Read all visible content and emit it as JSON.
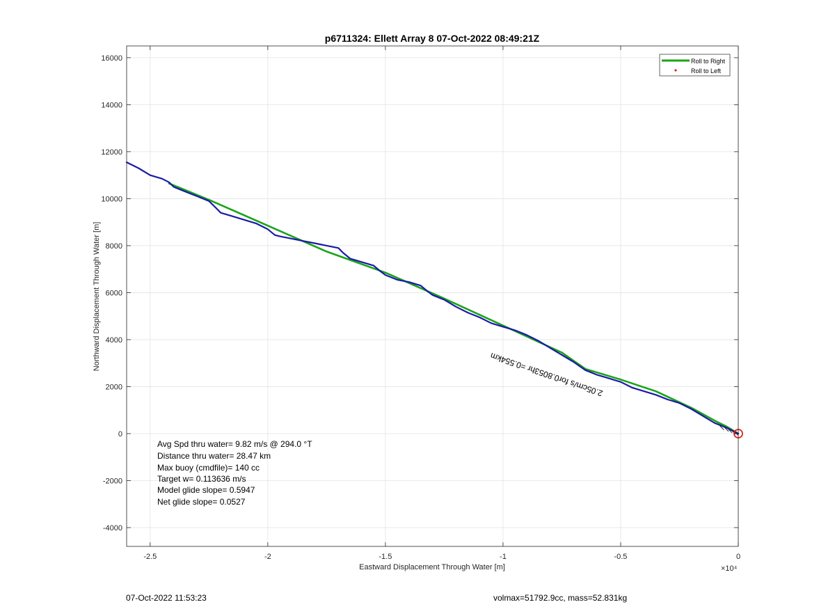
{
  "chart_data": {
    "type": "line",
    "title": "p6711324: Ellett Array 8 07-Oct-2022 08:49:21Z",
    "xlabel": "Eastward Displacement Through Water [m]",
    "ylabel": "Northward Displacement Through Water [m]",
    "xlim": [
      -26000,
      0
    ],
    "ylim": [
      -4800,
      16500
    ],
    "x_ticks": [
      -25000,
      -20000,
      -15000,
      -10000,
      -5000,
      0
    ],
    "x_tick_labels": [
      "-2.5",
      "-2",
      "-1.5",
      "-1",
      "-0.5",
      "0"
    ],
    "x_multiplier": "×10⁴",
    "y_ticks": [
      -4000,
      -2000,
      0,
      2000,
      4000,
      6000,
      8000,
      10000,
      12000,
      14000,
      16000
    ],
    "y_tick_labels": [
      "-4000",
      "-2000",
      "0",
      "2000",
      "4000",
      "6000",
      "8000",
      "10000",
      "12000",
      "14000",
      "16000"
    ],
    "grid": true,
    "legend_position": "top-right",
    "legend": [
      {
        "label": "Roll to Right",
        "color": "#1aa31a",
        "marker": "line"
      },
      {
        "label": "Roll to Left",
        "color": "#e02020",
        "marker": "dot"
      }
    ],
    "series": [
      {
        "name": "Roll to Right",
        "color": "#1aa31a",
        "x": [
          -24200,
          -22500,
          -20000,
          -17500,
          -15000,
          -12500,
          -10000,
          -7500,
          -6500,
          -5000,
          -3500,
          -2000,
          -1000,
          -500,
          0
        ],
        "y": [
          10650,
          9950,
          8850,
          7750,
          6850,
          5750,
          4600,
          3450,
          2750,
          2300,
          1800,
          1100,
          550,
          300,
          0
        ]
      },
      {
        "color": "#1a1aa8",
        "x": [
          -26000,
          -25500,
          -25000,
          -24500,
          -24200,
          -24000,
          -23500,
          -23000,
          -22500,
          -22200,
          -22000,
          -21500,
          -21000,
          -20500,
          -20000,
          -19700,
          -19500,
          -19000,
          -18500,
          -18000,
          -17500,
          -17000,
          -16800,
          -16500,
          -16000,
          -15500,
          -15200,
          -15000,
          -14500,
          -14000,
          -13500,
          -13200,
          -13000,
          -12500,
          -12000,
          -11500,
          -11000,
          -10500,
          -10000,
          -9500,
          -9000,
          -8500,
          -8000,
          -7500,
          -7000,
          -6500,
          -6000,
          -5500,
          -5000,
          -4500,
          -4000,
          -3500,
          -3000,
          -2500,
          -2000,
          -1500,
          -1000,
          -500,
          -200,
          0
        ],
        "y": [
          11550,
          11300,
          11000,
          10850,
          10700,
          10500,
          10300,
          10100,
          9900,
          9600,
          9400,
          9250,
          9100,
          8950,
          8700,
          8450,
          8400,
          8300,
          8200,
          8100,
          8000,
          7900,
          7700,
          7450,
          7300,
          7150,
          6900,
          6750,
          6550,
          6450,
          6300,
          6050,
          5900,
          5700,
          5400,
          5150,
          4950,
          4700,
          4550,
          4400,
          4200,
          3950,
          3650,
          3350,
          3050,
          2700,
          2500,
          2350,
          2200,
          1950,
          1800,
          1650,
          1450,
          1300,
          1050,
          750,
          450,
          250,
          100,
          0
        ]
      }
    ],
    "end_marker": {
      "x": 0,
      "y": 0,
      "color": "#e02020"
    },
    "curve_annotation": "2.05cm/s for0.8053hr =0.554km",
    "stats": [
      "Avg Spd thru water=  9.82 m/s @ 294.0 °T",
      "Distance thru water= 28.47 km",
      "Max buoy (cmdfile)= 140 cc",
      "Target w= 0.113636 m/s",
      "Model glide slope= 0.5947",
      "Net glide slope= 0.0527"
    ]
  },
  "footer": {
    "left": "07-Oct-2022 11:53:23",
    "right": "volmax=51792.9cc, mass=52.831kg"
  }
}
